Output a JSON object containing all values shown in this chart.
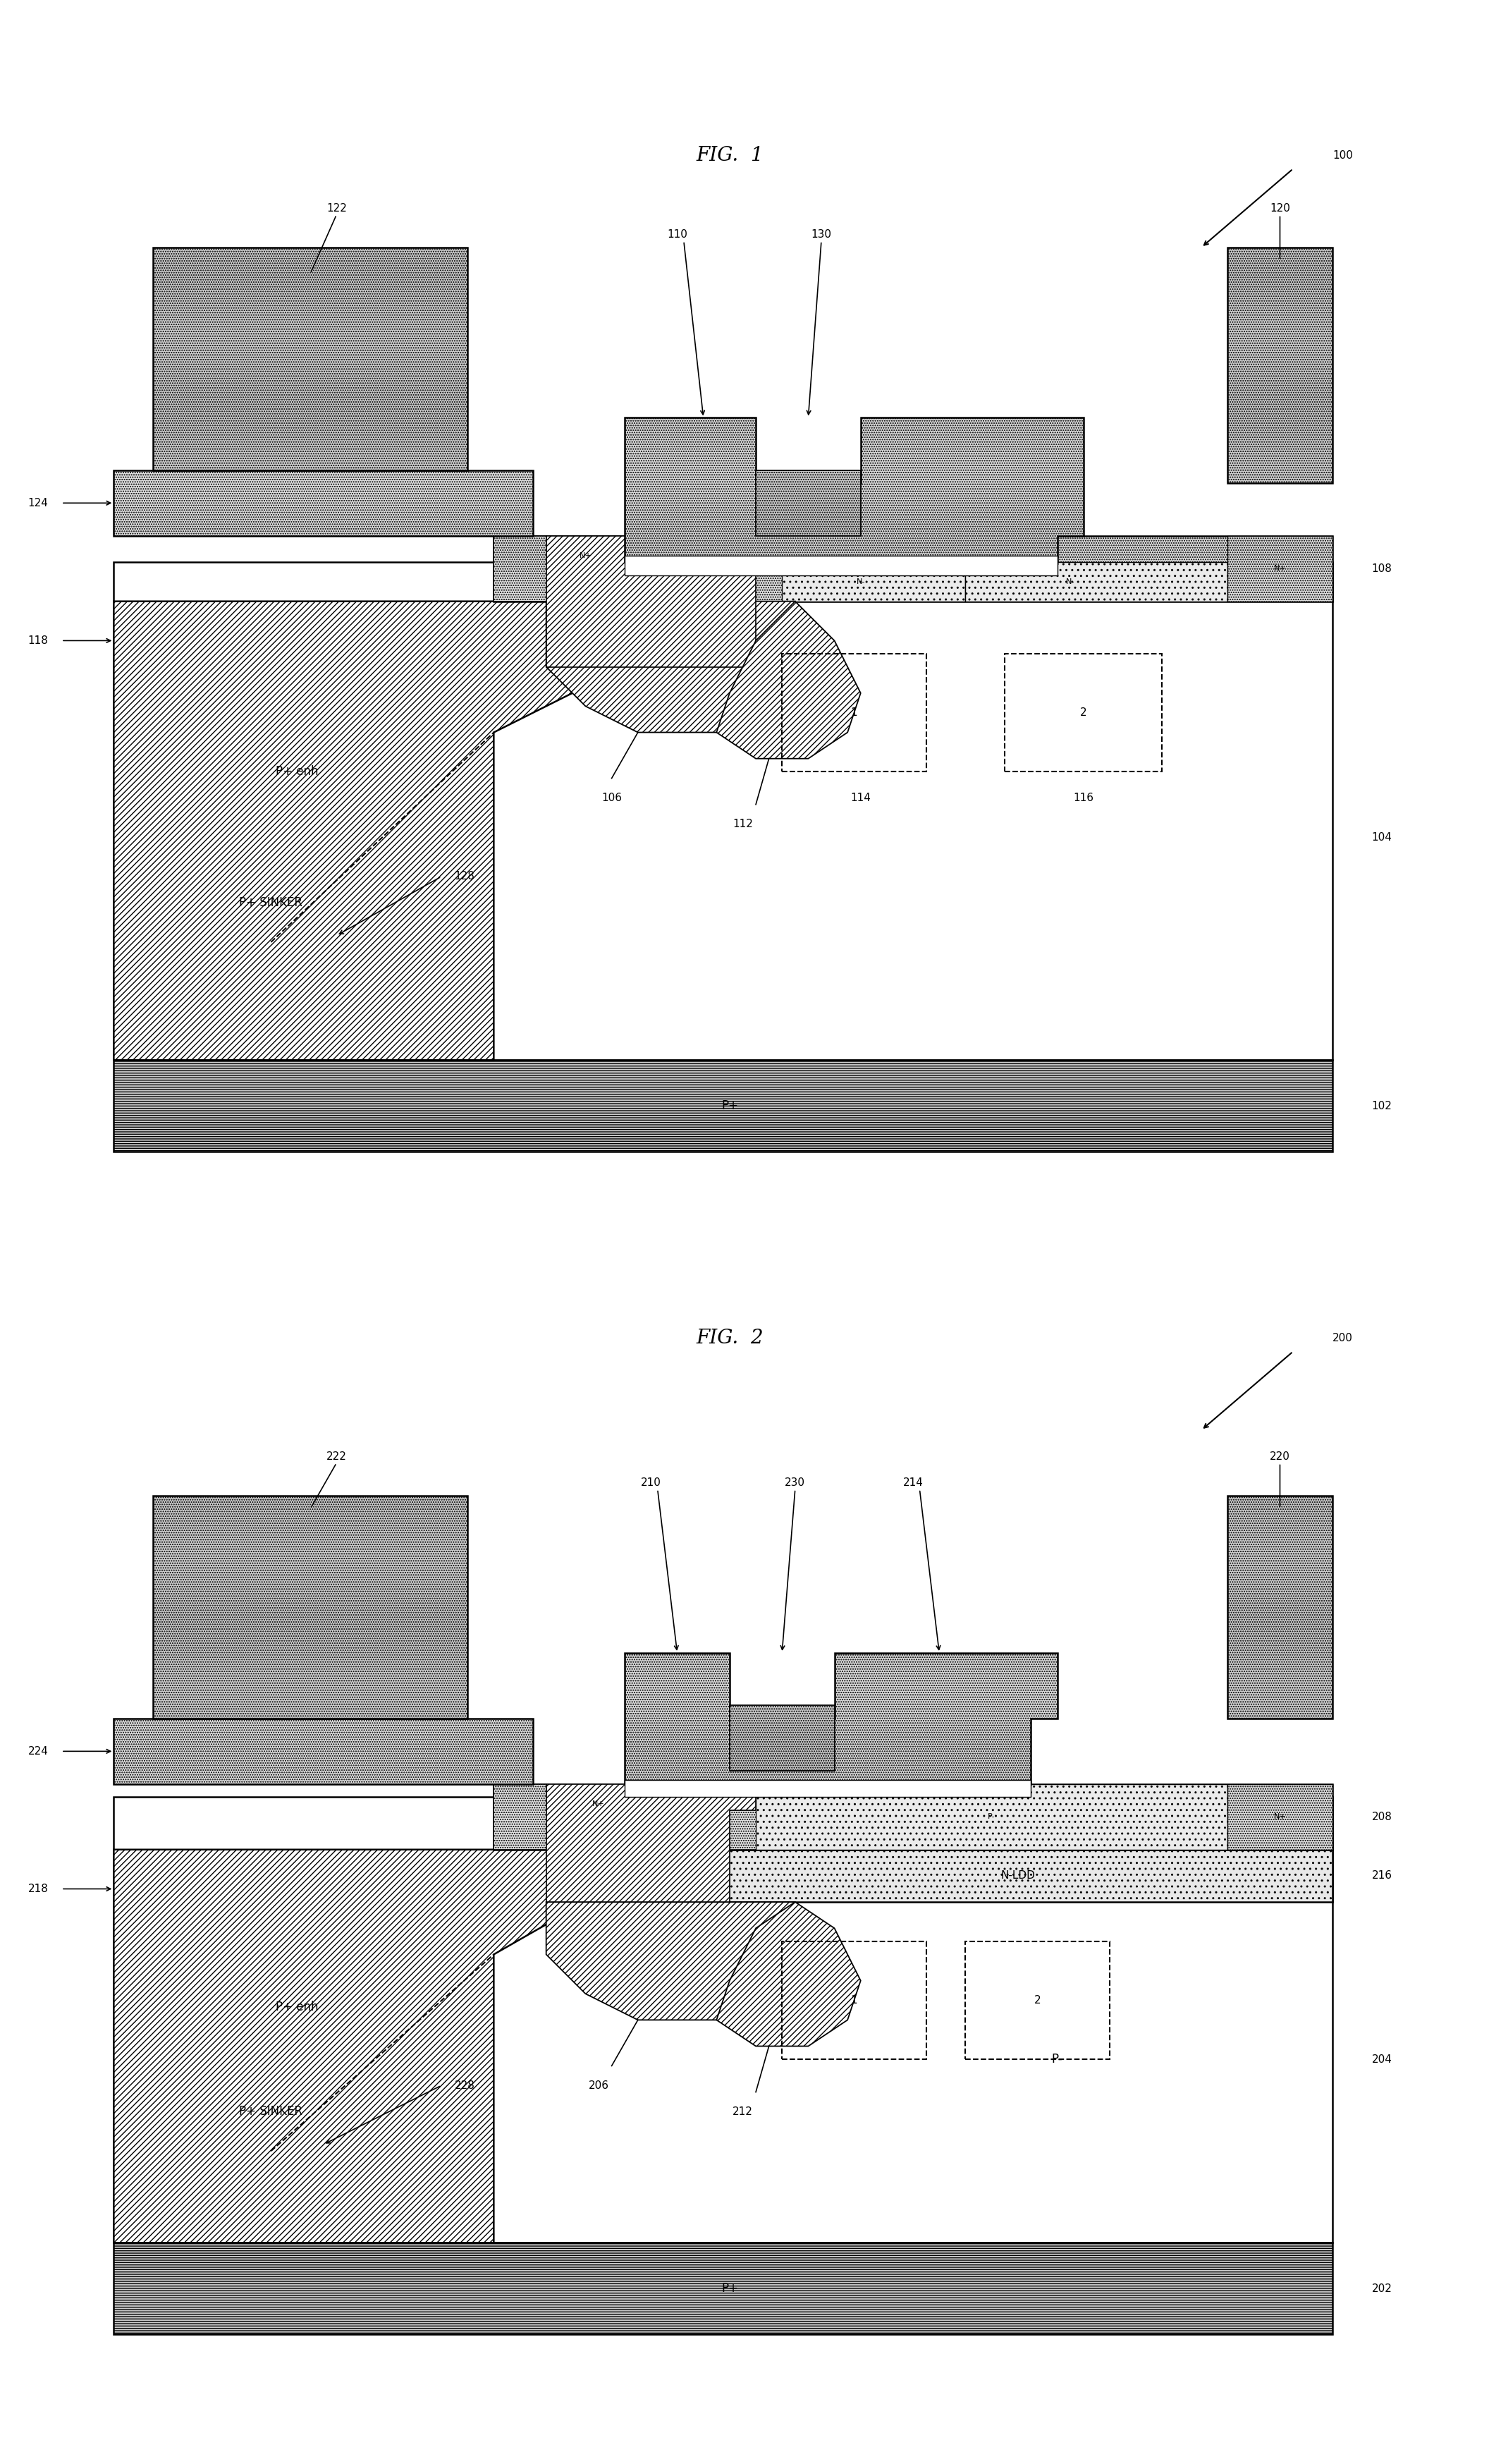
{
  "fig_width": 21.12,
  "fig_height": 34.94,
  "background": "white",
  "fig1_title": "FIG.  1",
  "fig2_title": "FIG.  2",
  "fig1_ref": "100",
  "fig2_ref": "200",
  "lw": 1.8
}
